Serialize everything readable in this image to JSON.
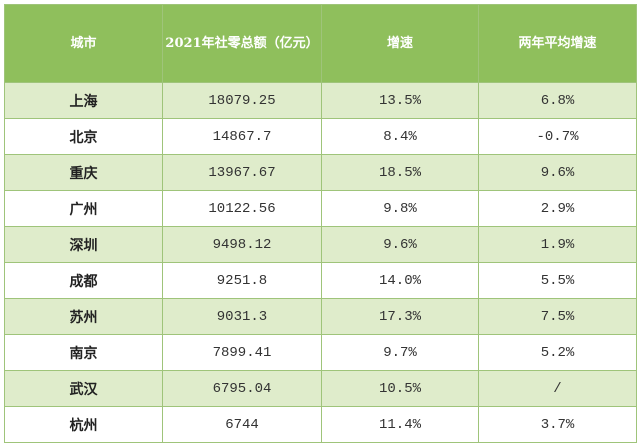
{
  "table": {
    "headers": [
      "城市",
      "2021年社零总额（亿元）",
      "增速",
      "两年平均增速"
    ],
    "rows": [
      {
        "city": "上海",
        "total": "18079.25",
        "growth": "13.5%",
        "avg": "6.8%"
      },
      {
        "city": "北京",
        "total": "14867.7",
        "growth": "8.4%",
        "avg": "-0.7%"
      },
      {
        "city": "重庆",
        "total": "13967.67",
        "growth": "18.5%",
        "avg": "9.6%"
      },
      {
        "city": "广州",
        "total": "10122.56",
        "growth": "9.8%",
        "avg": "2.9%"
      },
      {
        "city": "深圳",
        "total": "9498.12",
        "growth": "9.6%",
        "avg": "1.9%"
      },
      {
        "city": "成都",
        "total": "9251.8",
        "growth": "14.0%",
        "avg": "5.5%"
      },
      {
        "city": "苏州",
        "total": "9031.3",
        "growth": "17.3%",
        "avg": "7.5%"
      },
      {
        "city": "南京",
        "total": "7899.41",
        "growth": "9.7%",
        "avg": "5.2%"
      },
      {
        "city": "武汉",
        "total": "6795.04",
        "growth": "10.5%",
        "avg": "/"
      },
      {
        "city": "杭州",
        "total": "6744",
        "growth": "11.4%",
        "avg": "3.7%"
      }
    ]
  },
  "colors": {
    "header_bg": "#8fbf5c",
    "stripe_bg": "#dfeccb",
    "border": "#9fc47a"
  }
}
